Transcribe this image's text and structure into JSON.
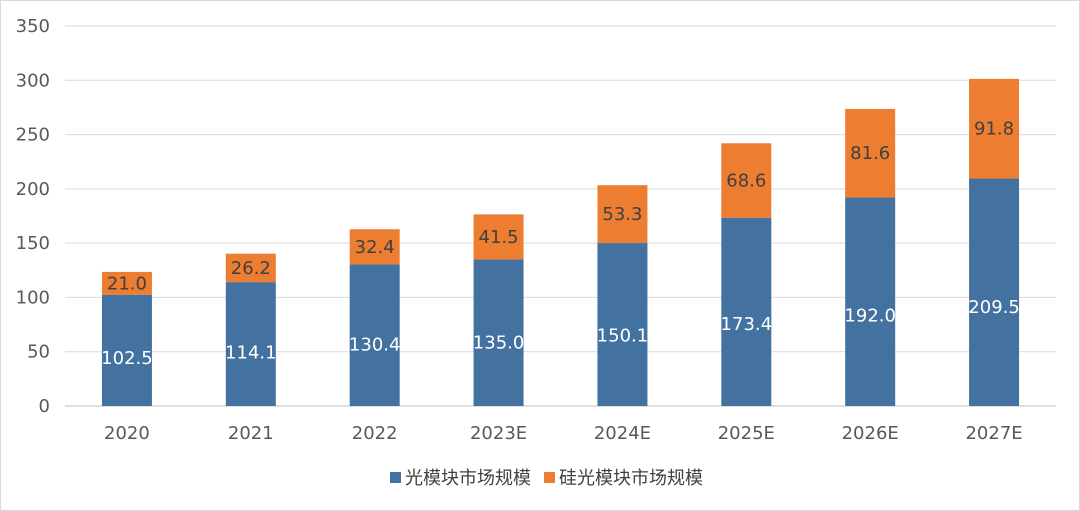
{
  "chart_data": {
    "type": "bar",
    "stacked": true,
    "categories": [
      "2020",
      "2021",
      "2022",
      "2023E",
      "2024E",
      "2025E",
      "2026E",
      "2027E"
    ],
    "series": [
      {
        "name": "光模块市场规模",
        "color": "#4472a0",
        "values": [
          102.5,
          114.1,
          130.4,
          135.0,
          150.1,
          173.4,
          192.0,
          209.5
        ]
      },
      {
        "name": "硅光模块市场规模",
        "color": "#ed7d31",
        "values": [
          21.0,
          26.2,
          32.4,
          41.5,
          53.3,
          68.6,
          81.6,
          91.8
        ]
      }
    ],
    "value_labels": [
      [
        "102.5",
        "114.1",
        "130.4",
        "135.0",
        "150.1",
        "173.4",
        "192.0",
        "209.5"
      ],
      [
        "21.0",
        "26.2",
        "32.4",
        "41.5",
        "53.3",
        "68.6",
        "81.6",
        "91.8"
      ]
    ],
    "yticks": [
      0,
      50,
      100,
      150,
      200,
      250,
      300,
      350
    ],
    "ylim": [
      0,
      350
    ],
    "grid": true,
    "legend_position": "bottom"
  }
}
